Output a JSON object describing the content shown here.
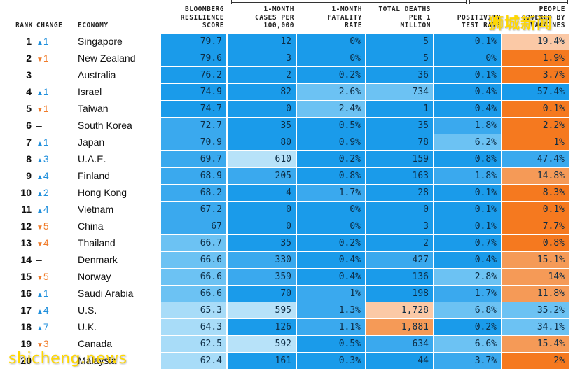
{
  "chart_data": {
    "type": "table",
    "columns": [
      {
        "key": "rank",
        "label": [
          "RANK"
        ]
      },
      {
        "key": "change",
        "label": [
          "CHANGE"
        ]
      },
      {
        "key": "economy",
        "label": [
          "ECONOMY"
        ]
      },
      {
        "key": "score",
        "label": [
          "BLOOMBERG",
          "RESILIENCE",
          "SCORE"
        ]
      },
      {
        "key": "cases",
        "label": [
          "1-MONTH",
          "CASES PER",
          "100,000"
        ]
      },
      {
        "key": "fatality",
        "label": [
          "1-MONTH",
          "FATALITY",
          "RATE"
        ]
      },
      {
        "key": "deaths",
        "label": [
          "TOTAL DEATHS",
          "PER 1",
          "MILLION"
        ]
      },
      {
        "key": "positivity",
        "label": [
          "POSITIVITY",
          "TEST RATE"
        ]
      },
      {
        "key": "vaccinated",
        "label": [
          "PEOPLE",
          "COVERED BY",
          "VACCINES"
        ]
      }
    ],
    "rows": [
      {
        "rank": 1,
        "dir": "up",
        "change": "1",
        "economy": "Singapore",
        "score": "79.7",
        "cases": "12",
        "fatality": "0%",
        "deaths": "5",
        "positivity": "0.1%",
        "vaccinated": "19.4%"
      },
      {
        "rank": 2,
        "dir": "down",
        "change": "1",
        "economy": "New Zealand",
        "score": "79.6",
        "cases": "3",
        "fatality": "0%",
        "deaths": "5",
        "positivity": "0%",
        "vaccinated": "1.9%"
      },
      {
        "rank": 3,
        "dir": "none",
        "change": "–",
        "economy": "Australia",
        "score": "76.2",
        "cases": "2",
        "fatality": "0.2%",
        "deaths": "36",
        "positivity": "0.1%",
        "vaccinated": "3.7%"
      },
      {
        "rank": 4,
        "dir": "up",
        "change": "1",
        "economy": "Israel",
        "score": "74.9",
        "cases": "82",
        "fatality": "2.6%",
        "deaths": "734",
        "positivity": "0.4%",
        "vaccinated": "57.4%"
      },
      {
        "rank": 5,
        "dir": "down",
        "change": "1",
        "economy": "Taiwan",
        "score": "74.7",
        "cases": "0",
        "fatality": "2.4%",
        "deaths": "1",
        "positivity": "0.4%",
        "vaccinated": "0.1%"
      },
      {
        "rank": 6,
        "dir": "none",
        "change": "–",
        "economy": "South Korea",
        "score": "72.7",
        "cases": "35",
        "fatality": "0.5%",
        "deaths": "35",
        "positivity": "1.8%",
        "vaccinated": "2.2%"
      },
      {
        "rank": 7,
        "dir": "up",
        "change": "1",
        "economy": "Japan",
        "score": "70.9",
        "cases": "80",
        "fatality": "0.9%",
        "deaths": "78",
        "positivity": "6.2%",
        "vaccinated": "1%"
      },
      {
        "rank": 8,
        "dir": "up",
        "change": "3",
        "economy": "U.A.E.",
        "score": "69.7",
        "cases": "610",
        "fatality": "0.2%",
        "deaths": "159",
        "positivity": "0.8%",
        "vaccinated": "47.4%"
      },
      {
        "rank": 9,
        "dir": "up",
        "change": "4",
        "economy": "Finland",
        "score": "68.9",
        "cases": "205",
        "fatality": "0.8%",
        "deaths": "163",
        "positivity": "1.8%",
        "vaccinated": "14.8%"
      },
      {
        "rank": 10,
        "dir": "up",
        "change": "2",
        "economy": "Hong Kong",
        "score": "68.2",
        "cases": "4",
        "fatality": "1.7%",
        "deaths": "28",
        "positivity": "0.1%",
        "vaccinated": "8.3%"
      },
      {
        "rank": 11,
        "dir": "up",
        "change": "4",
        "economy": "Vietnam",
        "score": "67.2",
        "cases": "0",
        "fatality": "0%",
        "deaths": "0",
        "positivity": "0.1%",
        "vaccinated": "0.1%"
      },
      {
        "rank": 12,
        "dir": "down",
        "change": "5",
        "economy": "China",
        "score": "67",
        "cases": "0",
        "fatality": "0%",
        "deaths": "3",
        "positivity": "0.1%",
        "vaccinated": "7.7%"
      },
      {
        "rank": 13,
        "dir": "down",
        "change": "4",
        "economy": "Thailand",
        "score": "66.7",
        "cases": "35",
        "fatality": "0.2%",
        "deaths": "2",
        "positivity": "0.7%",
        "vaccinated": "0.8%"
      },
      {
        "rank": 14,
        "dir": "none",
        "change": "–",
        "economy": "Denmark",
        "score": "66.6",
        "cases": "330",
        "fatality": "0.4%",
        "deaths": "427",
        "positivity": "0.4%",
        "vaccinated": "15.1%"
      },
      {
        "rank": 15,
        "dir": "down",
        "change": "5",
        "economy": "Norway",
        "score": "66.6",
        "cases": "359",
        "fatality": "0.4%",
        "deaths": "136",
        "positivity": "2.8%",
        "vaccinated": "14%"
      },
      {
        "rank": 16,
        "dir": "up",
        "change": "1",
        "economy": "Saudi Arabia",
        "score": "66.6",
        "cases": "70",
        "fatality": "1%",
        "deaths": "198",
        "positivity": "1.7%",
        "vaccinated": "11.8%"
      },
      {
        "rank": 17,
        "dir": "up",
        "change": "4",
        "economy": "U.S.",
        "score": "65.3",
        "cases": "595",
        "fatality": "1.3%",
        "deaths": "1,728",
        "positivity": "6.8%",
        "vaccinated": "35.2%"
      },
      {
        "rank": 18,
        "dir": "up",
        "change": "7",
        "economy": "U.K.",
        "score": "64.3",
        "cases": "126",
        "fatality": "1.1%",
        "deaths": "1,881",
        "positivity": "0.2%",
        "vaccinated": "34.1%"
      },
      {
        "rank": 19,
        "dir": "down",
        "change": "3",
        "economy": "Canada",
        "score": "62.5",
        "cases": "592",
        "fatality": "0.5%",
        "deaths": "634",
        "positivity": "6.6%",
        "vaccinated": "15.4%"
      },
      {
        "rank": 20,
        "dir": "none",
        "change": "",
        "economy": "Malaysia",
        "score": "62.4",
        "cases": "161",
        "fatality": "0.3%",
        "deaths": "44",
        "positivity": "3.7%",
        "vaccinated": "2%"
      }
    ]
  },
  "cell_colors": {
    "score": [
      "#1a9bea",
      "#1a9bea",
      "#1a9bea",
      "#1a9bea",
      "#1a9bea",
      "#3aa9ee",
      "#3aa9ee",
      "#3aa9ee",
      "#3aa9ee",
      "#3aa9ee",
      "#3aa9ee",
      "#3aa9ee",
      "#6cc2f3",
      "#6cc2f3",
      "#6cc2f3",
      "#6cc2f3",
      "#a8dcf8",
      "#a8dcf8",
      "#a8dcf8",
      "#a8dcf8"
    ],
    "cases": [
      "#1a9bea",
      "#1a9bea",
      "#1a9bea",
      "#1a9bea",
      "#1a9bea",
      "#1a9bea",
      "#1a9bea",
      "#b7e2f9",
      "#3aa9ee",
      "#1a9bea",
      "#1a9bea",
      "#1a9bea",
      "#1a9bea",
      "#3aa9ee",
      "#3aa9ee",
      "#1a9bea",
      "#b7e2f9",
      "#1a9bea",
      "#b7e2f9",
      "#1a9bea"
    ],
    "fatality": [
      "#1a9bea",
      "#1a9bea",
      "#1a9bea",
      "#6cc2f3",
      "#6cc2f3",
      "#1a9bea",
      "#1a9bea",
      "#1a9bea",
      "#1a9bea",
      "#3aa9ee",
      "#1a9bea",
      "#1a9bea",
      "#1a9bea",
      "#1a9bea",
      "#1a9bea",
      "#3aa9ee",
      "#3aa9ee",
      "#3aa9ee",
      "#1a9bea",
      "#1a9bea"
    ],
    "deaths": [
      "#1a9bea",
      "#1a9bea",
      "#1a9bea",
      "#6cc2f3",
      "#1a9bea",
      "#1a9bea",
      "#1a9bea",
      "#1a9bea",
      "#1a9bea",
      "#1a9bea",
      "#1a9bea",
      "#1a9bea",
      "#1a9bea",
      "#3aa9ee",
      "#1a9bea",
      "#1a9bea",
      "#fbc9a6",
      "#f59a57",
      "#3aa9ee",
      "#1a9bea"
    ],
    "positivity": [
      "#1a9bea",
      "#1a9bea",
      "#1a9bea",
      "#1a9bea",
      "#1a9bea",
      "#3aa9ee",
      "#6cc2f3",
      "#1a9bea",
      "#3aa9ee",
      "#1a9bea",
      "#1a9bea",
      "#1a9bea",
      "#1a9bea",
      "#1a9bea",
      "#6cc2f3",
      "#3aa9ee",
      "#6cc2f3",
      "#1a9bea",
      "#6cc2f3",
      "#3aa9ee"
    ],
    "vaccinated": [
      "#fbc9a6",
      "#f5791f",
      "#f5791f",
      "#1a9bea",
      "#f5791f",
      "#f5791f",
      "#f5791f",
      "#3aa9ee",
      "#f59a57",
      "#f5791f",
      "#f5791f",
      "#f5791f",
      "#f5791f",
      "#f59a57",
      "#f59a57",
      "#f59a57",
      "#6cc2f3",
      "#6cc2f3",
      "#f59a57",
      "#f5791f"
    ]
  },
  "watermark_top": "狮城新闻",
  "watermark_bottom": "shicheng.news"
}
